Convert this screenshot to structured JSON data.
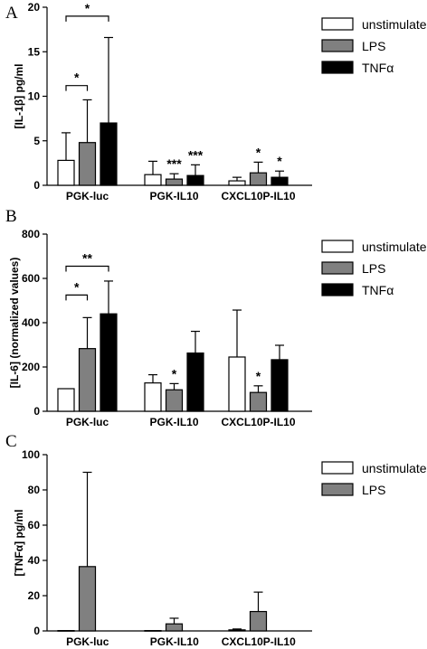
{
  "colors": {
    "unstimulated": "#ffffff",
    "LPS": "#808080",
    "TNFa": "#000000"
  },
  "chart_data": [
    {
      "type": "bar",
      "panel": "A",
      "ylabel": "[IL-1β] pg/ml",
      "ylim": [
        0,
        20
      ],
      "yticks": [
        0,
        5,
        10,
        15,
        20
      ],
      "categories": [
        "PGK-luc",
        "PGK-IL10",
        "CXCL10P-IL10"
      ],
      "series": [
        {
          "name": "unstimulated",
          "values": [
            2.8,
            1.2,
            0.5
          ],
          "errors": [
            3.1,
            1.5,
            0.4
          ]
        },
        {
          "name": "LPS",
          "values": [
            4.8,
            0.7,
            1.4
          ],
          "errors": [
            4.8,
            0.6,
            1.2
          ]
        },
        {
          "name": "TNFα",
          "values": [
            7.0,
            1.1,
            0.9
          ],
          "errors": [
            9.6,
            1.2,
            0.7
          ]
        }
      ],
      "annotations": [
        {
          "series": 1,
          "category": 1,
          "text": "***"
        },
        {
          "series": 2,
          "category": 1,
          "text": "***"
        },
        {
          "series": 1,
          "category": 2,
          "text": "*"
        },
        {
          "series": 2,
          "category": 2,
          "text": "*"
        }
      ],
      "brackets": [
        {
          "category": 0,
          "from": 0,
          "to": 1,
          "y": 11.2,
          "text": "*"
        },
        {
          "category": 0,
          "from": 0,
          "to": 2,
          "y": 19.0,
          "text": "*"
        }
      ]
    },
    {
      "type": "bar",
      "panel": "B",
      "ylabel": "[IL-6] (normalized values)",
      "ylim": [
        0,
        800
      ],
      "yticks": [
        0,
        200,
        400,
        600,
        800
      ],
      "categories": [
        "PGK-luc",
        "PGK-IL10",
        "CXCL10P-IL10"
      ],
      "series": [
        {
          "name": "unstimulated",
          "values": [
            102,
            128,
            245
          ],
          "errors": [
            0,
            37,
            212
          ]
        },
        {
          "name": "LPS",
          "values": [
            283,
            97,
            85
          ],
          "errors": [
            140,
            28,
            30
          ]
        },
        {
          "name": "TNFα",
          "values": [
            440,
            263,
            233
          ],
          "errors": [
            148,
            98,
            65
          ]
        }
      ],
      "annotations": [
        {
          "series": 1,
          "category": 1,
          "text": "*"
        },
        {
          "series": 1,
          "category": 2,
          "text": "*"
        }
      ],
      "brackets": [
        {
          "category": 0,
          "from": 0,
          "to": 1,
          "y": 525,
          "text": "*"
        },
        {
          "category": 0,
          "from": 0,
          "to": 2,
          "y": 655,
          "text": "**"
        }
      ]
    },
    {
      "type": "bar",
      "panel": "C",
      "ylabel": "[TNFα] pg/ml",
      "ylim": [
        0,
        100
      ],
      "yticks": [
        0,
        20,
        40,
        60,
        80,
        100
      ],
      "categories": [
        "PGK-luc",
        "PGK-IL10",
        "CXCL10P-IL10"
      ],
      "series": [
        {
          "name": "unstimulated",
          "values": [
            0.2,
            0.2,
            0.6
          ],
          "errors": [
            0,
            0,
            0.5
          ]
        },
        {
          "name": "LPS",
          "values": [
            36.5,
            4.0,
            11.0
          ],
          "errors": [
            53.5,
            3.2,
            11.0
          ]
        }
      ],
      "annotations": [],
      "brackets": []
    }
  ]
}
